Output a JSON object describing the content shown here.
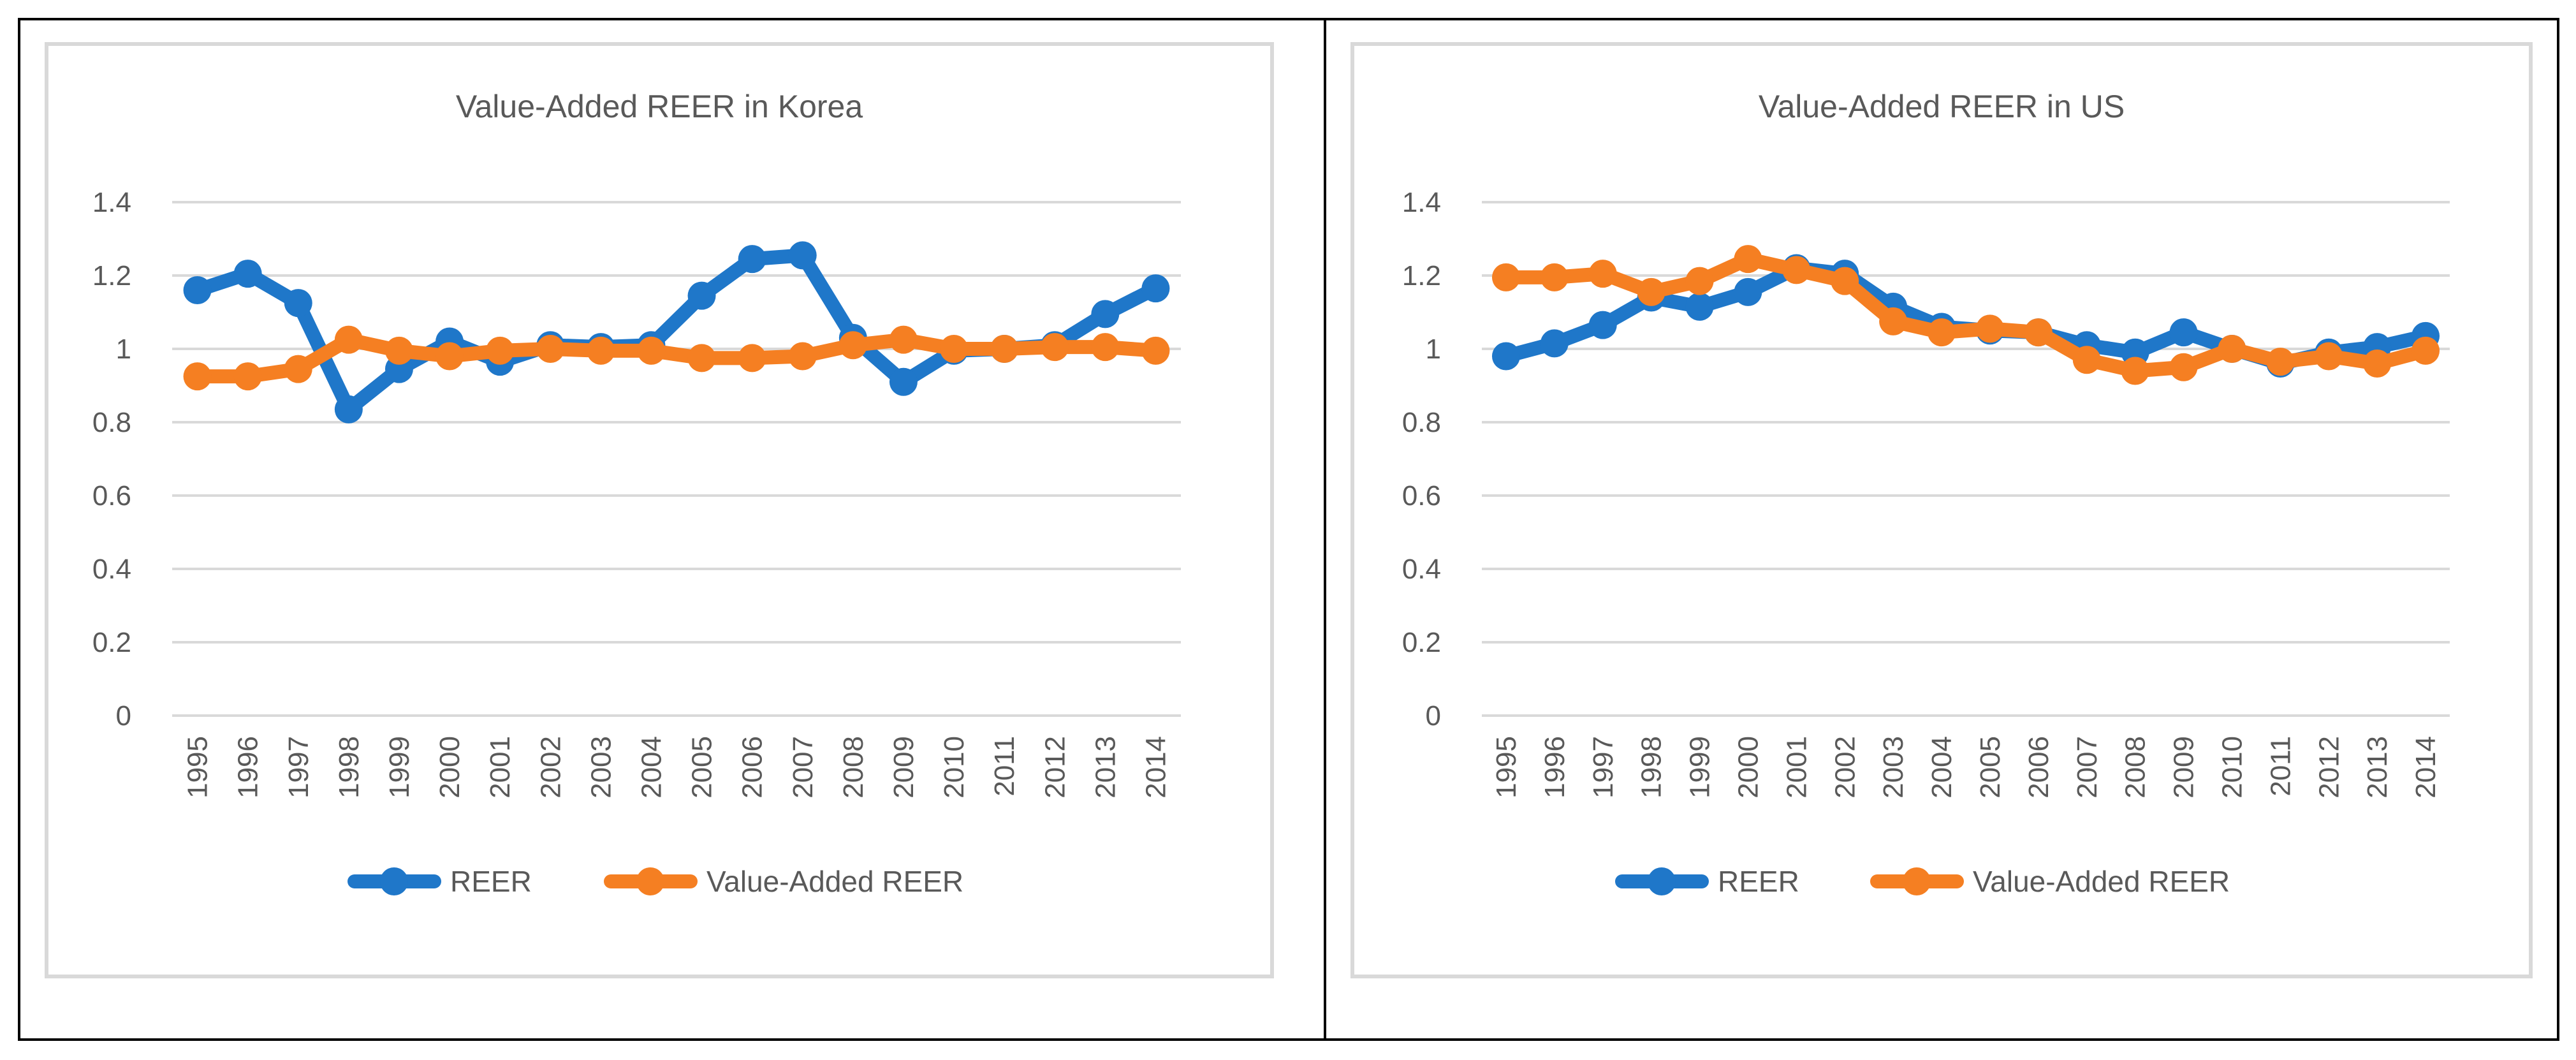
{
  "chart_data": [
    {
      "type": "line",
      "title": "Value-Added REER in Korea",
      "categories": [
        "1995",
        "1996",
        "1997",
        "1998",
        "1999",
        "2000",
        "2001",
        "2002",
        "2003",
        "2004",
        "2005",
        "2006",
        "2007",
        "2008",
        "2009",
        "2010",
        "2011",
        "2012",
        "2013",
        "2014"
      ],
      "y_ticks": [
        "0",
        "0.2",
        "0.4",
        "0.6",
        "0.8",
        "1",
        "1.2",
        "1.4"
      ],
      "ylim": [
        0,
        1.4
      ],
      "grid": true,
      "legend_position": "bottom",
      "series": [
        {
          "name": "REER",
          "color": "#1f77c9",
          "values": [
            1.16,
            1.205,
            1.125,
            0.835,
            0.945,
            1.02,
            0.965,
            1.01,
            1.005,
            1.01,
            1.145,
            1.245,
            1.255,
            1.03,
            0.91,
            0.995,
            1.0,
            1.01,
            1.095,
            1.165
          ]
        },
        {
          "name": "Value-Added REER",
          "color": "#f57f22",
          "values": [
            0.925,
            0.925,
            0.945,
            1.025,
            0.995,
            0.98,
            0.995,
            1.0,
            0.995,
            0.995,
            0.975,
            0.975,
            0.98,
            1.01,
            1.025,
            1.0,
            1.0,
            1.005,
            1.005,
            0.995
          ]
        }
      ]
    },
    {
      "type": "line",
      "title": "Value-Added REER in US",
      "categories": [
        "1995",
        "1996",
        "1997",
        "1998",
        "1999",
        "2000",
        "2001",
        "2002",
        "2003",
        "2004",
        "2005",
        "2006",
        "2007",
        "2008",
        "2009",
        "2010",
        "2011",
        "2012",
        "2013",
        "2014"
      ],
      "y_ticks": [
        "0",
        "0.2",
        "0.4",
        "0.6",
        "0.8",
        "1",
        "1.2",
        "1.4"
      ],
      "ylim": [
        0,
        1.4
      ],
      "grid": true,
      "legend_position": "bottom",
      "series": [
        {
          "name": "REER",
          "color": "#1f77c9",
          "values": [
            0.98,
            1.015,
            1.065,
            1.14,
            1.115,
            1.155,
            1.22,
            1.205,
            1.115,
            1.06,
            1.05,
            1.045,
            1.01,
            0.99,
            1.045,
            1.0,
            0.96,
            0.99,
            1.005,
            1.035
          ]
        },
        {
          "name": "Value-Added REER",
          "color": "#f57f22",
          "values": [
            1.195,
            1.195,
            1.205,
            1.155,
            1.185,
            1.245,
            1.215,
            1.185,
            1.075,
            1.045,
            1.055,
            1.045,
            0.97,
            0.94,
            0.95,
            1.0,
            0.965,
            0.98,
            0.96,
            0.995
          ]
        }
      ]
    }
  ]
}
